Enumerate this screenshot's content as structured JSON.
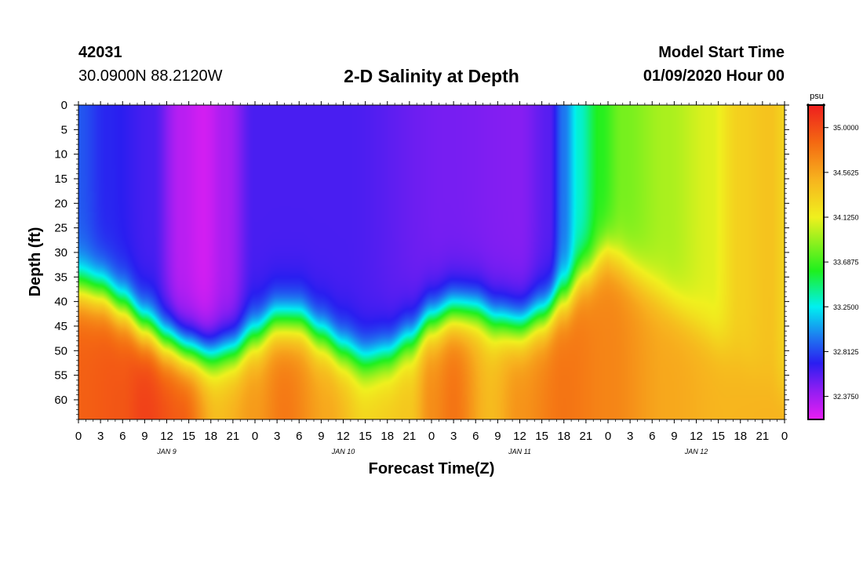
{
  "header": {
    "station_id": "42031",
    "station_position": "30.0900N 88.2120W",
    "title": "2-D Salinity at Depth",
    "model_start_label": "Model Start Time",
    "model_start_value": "01/09/2020 Hour 00"
  },
  "chart_data": {
    "type": "heatmap",
    "title": "2-D Salinity at Depth",
    "xlabel": "Forecast Time(Z)",
    "ylabel": "Depth (ft)",
    "x_units": "hours since model start",
    "xlim": [
      0,
      96
    ],
    "ylim": [
      0,
      64
    ],
    "y_inverted": true,
    "x_ticks": [
      0,
      3,
      6,
      9,
      12,
      15,
      18,
      21,
      24,
      27,
      30,
      33,
      36,
      39,
      42,
      45,
      48,
      51,
      54,
      57,
      60,
      63,
      66,
      69,
      72,
      75,
      78,
      81,
      84,
      87,
      90,
      93,
      96
    ],
    "x_tick_labels": [
      "0",
      "3",
      "6",
      "9",
      "12",
      "15",
      "18",
      "21",
      "0",
      "3",
      "6",
      "9",
      "12",
      "15",
      "18",
      "21",
      "0",
      "3",
      "6",
      "9",
      "12",
      "15",
      "18",
      "21",
      "0",
      "3",
      "6",
      "9",
      "12",
      "15",
      "18",
      "21",
      "0"
    ],
    "day_labels": [
      {
        "text": "JAN 9",
        "hour": 12
      },
      {
        "text": "JAN 10",
        "hour": 36
      },
      {
        "text": "JAN 11",
        "hour": 60
      },
      {
        "text": "JAN 12",
        "hour": 84
      }
    ],
    "y_ticks": [
      0,
      5,
      10,
      15,
      20,
      25,
      30,
      35,
      40,
      45,
      50,
      55,
      60
    ],
    "colorbar": {
      "units": "psu",
      "min": 32.15,
      "max": 35.22,
      "tick_values": [
        35.0,
        34.5625,
        34.125,
        33.6875,
        33.25,
        32.8125,
        32.375
      ],
      "tick_labels": [
        "35.0000",
        "34.5625",
        "34.1250",
        "33.6875",
        "33.2500",
        "32.8125",
        "32.3750"
      ],
      "stops": [
        {
          "v": 32.15,
          "c": "#e81ef2"
        },
        {
          "v": 32.45,
          "c": "#8a1ef2"
        },
        {
          "v": 32.7,
          "c": "#2a1ef0"
        },
        {
          "v": 32.95,
          "c": "#1e78f0"
        },
        {
          "v": 33.25,
          "c": "#00f0f0"
        },
        {
          "v": 33.6,
          "c": "#1ef01e"
        },
        {
          "v": 33.9,
          "c": "#96f01e"
        },
        {
          "v": 34.125,
          "c": "#f0f01e"
        },
        {
          "v": 34.5,
          "c": "#f7b21e"
        },
        {
          "v": 34.85,
          "c": "#f46a12"
        },
        {
          "v": 35.22,
          "c": "#ee1e1e"
        }
      ]
    },
    "interface_depth_ft": {
      "hours": [
        0,
        3,
        6,
        9,
        12,
        15,
        18,
        21,
        24,
        27,
        30,
        33,
        36,
        39,
        42,
        45,
        48,
        51,
        54,
        57,
        60,
        63,
        66,
        69,
        72
      ],
      "depth": [
        37,
        38,
        41,
        45,
        48,
        50,
        51,
        50,
        47,
        44,
        44,
        47,
        50,
        52,
        51,
        48,
        44,
        42,
        42,
        44,
        45,
        43,
        39,
        34,
        30
      ]
    },
    "upper_layer_salinity": [
      {
        "hour": 0,
        "value": 32.86
      },
      {
        "hour": 4,
        "value": 32.72
      },
      {
        "hour": 10,
        "value": 32.62
      },
      {
        "hour": 14,
        "value": 32.3
      },
      {
        "hour": 17,
        "value": 32.22
      },
      {
        "hour": 20,
        "value": 32.35
      },
      {
        "hour": 24,
        "value": 32.62
      },
      {
        "hour": 36,
        "value": 32.62
      },
      {
        "hour": 50,
        "value": 32.5
      },
      {
        "hour": 60,
        "value": 32.46
      },
      {
        "hour": 64,
        "value": 32.58
      },
      {
        "hour": 66,
        "value": 32.95
      },
      {
        "hour": 68,
        "value": 33.3
      },
      {
        "hour": 71,
        "value": 33.62
      },
      {
        "hour": 74,
        "value": 33.82
      },
      {
        "hour": 80,
        "value": 33.95
      },
      {
        "hour": 86,
        "value": 34.08
      },
      {
        "hour": 90,
        "value": 34.32
      },
      {
        "hour": 94,
        "value": 34.4
      },
      {
        "hour": 96,
        "value": 34.3
      }
    ],
    "bottom_salinity": [
      {
        "hour": 0,
        "value": 34.9
      },
      {
        "hour": 6,
        "value": 34.95
      },
      {
        "hour": 9,
        "value": 35.05
      },
      {
        "hour": 14,
        "value": 34.92
      },
      {
        "hour": 19,
        "value": 34.45
      },
      {
        "hour": 24,
        "value": 34.62
      },
      {
        "hour": 28,
        "value": 34.78
      },
      {
        "hour": 34,
        "value": 34.55
      },
      {
        "hour": 39,
        "value": 34.3
      },
      {
        "hour": 45,
        "value": 34.38
      },
      {
        "hour": 48,
        "value": 34.68
      },
      {
        "hour": 51,
        "value": 34.8
      },
      {
        "hour": 56,
        "value": 34.45
      },
      {
        "hour": 60,
        "value": 34.65
      },
      {
        "hour": 66,
        "value": 34.8
      },
      {
        "hour": 72,
        "value": 34.72
      },
      {
        "hour": 80,
        "value": 34.55
      },
      {
        "hour": 88,
        "value": 34.48
      },
      {
        "hour": 96,
        "value": 34.5
      }
    ]
  }
}
